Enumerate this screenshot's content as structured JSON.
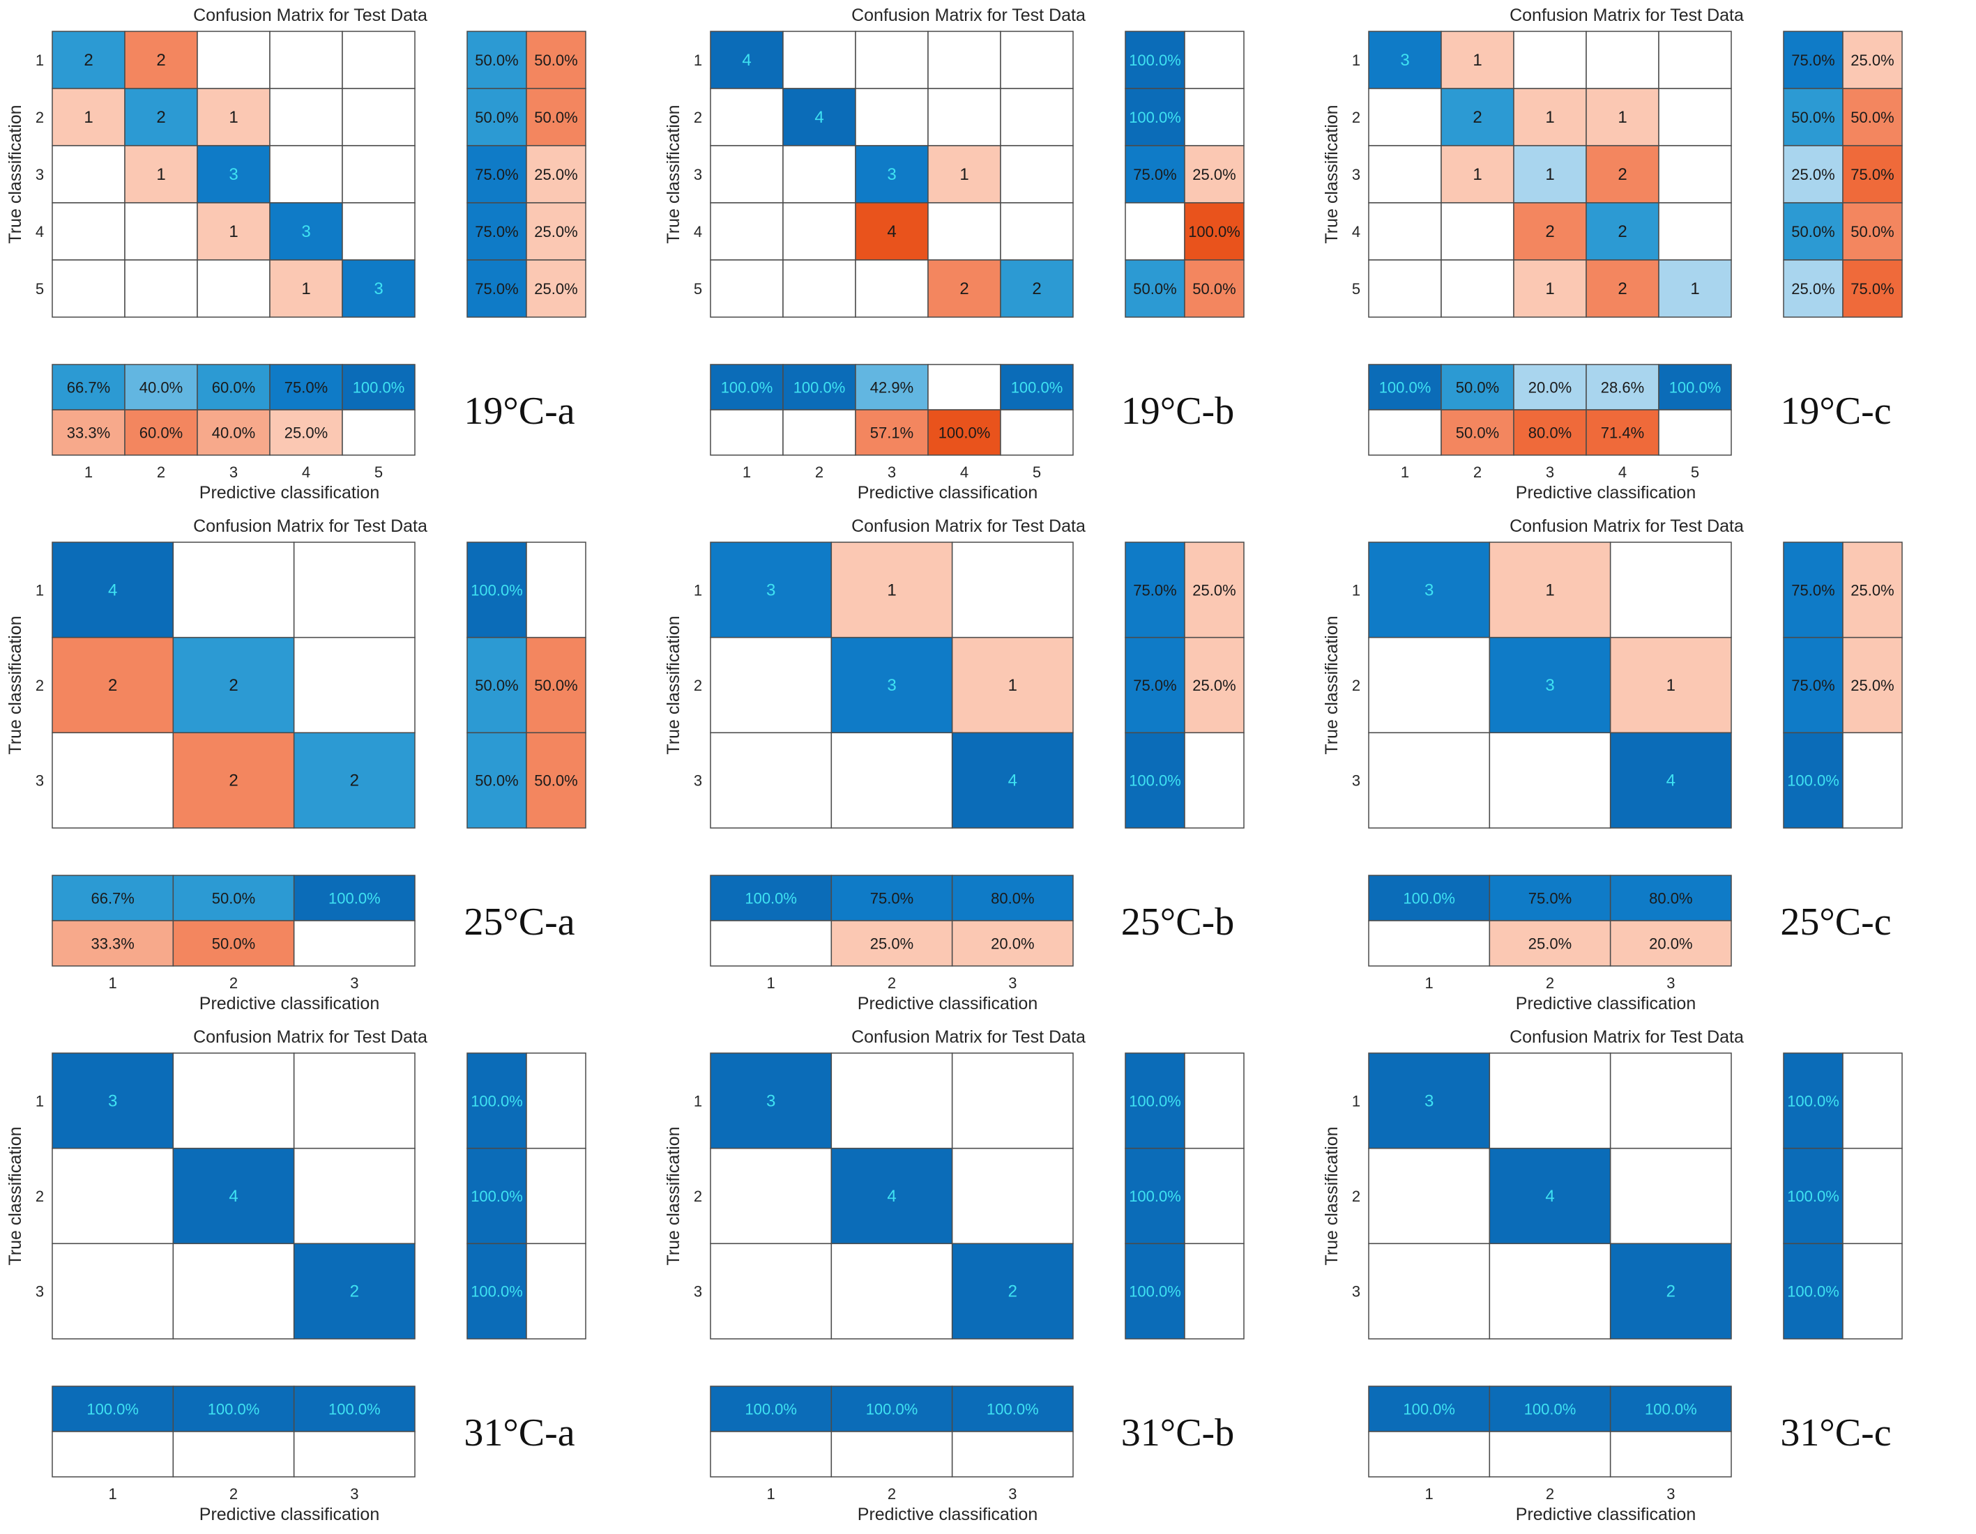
{
  "colors": {
    "blue_scale": [
      "#d3e9f6",
      "#a9d5ee",
      "#62b6e1",
      "#2c9ad3",
      "#0f7bc7",
      "#0b6cb8"
    ],
    "red_scale": [
      "#fde3d6",
      "#fbc8b3",
      "#f7a98b",
      "#f3865f",
      "#ef6a3a",
      "#e9531c"
    ],
    "grid": "#4a4a4a",
    "light_text": "#ffffff",
    "cyan_text": "#3fe2f2",
    "dark_text": "#1a1a1a"
  },
  "common": {
    "title": "Confusion Matrix for Test Data",
    "xlabel": "Predictive classification",
    "ylabel": "True classification"
  },
  "chart_data": [
    {
      "id": "19a",
      "label": "19°C-a",
      "type": "heatmap",
      "classes": [
        "1",
        "2",
        "3",
        "4",
        "5"
      ],
      "matrix": [
        [
          2,
          2,
          0,
          0,
          0
        ],
        [
          1,
          2,
          1,
          0,
          0
        ],
        [
          0,
          1,
          3,
          0,
          0
        ],
        [
          0,
          0,
          1,
          3,
          0
        ],
        [
          0,
          0,
          0,
          1,
          3
        ]
      ],
      "row_summary": [
        [
          "50.0%",
          "50.0%"
        ],
        [
          "50.0%",
          "50.0%"
        ],
        [
          "75.0%",
          "25.0%"
        ],
        [
          "75.0%",
          "25.0%"
        ],
        [
          "75.0%",
          "25.0%"
        ]
      ],
      "col_summary": [
        [
          "66.7%",
          "40.0%",
          "60.0%",
          "75.0%",
          "100.0%"
        ],
        [
          "33.3%",
          "60.0%",
          "40.0%",
          "25.0%",
          ""
        ]
      ]
    },
    {
      "id": "19b",
      "label": "19°C-b",
      "type": "heatmap",
      "classes": [
        "1",
        "2",
        "3",
        "4",
        "5"
      ],
      "matrix": [
        [
          4,
          0,
          0,
          0,
          0
        ],
        [
          0,
          4,
          0,
          0,
          0
        ],
        [
          0,
          0,
          3,
          1,
          0
        ],
        [
          0,
          0,
          4,
          0,
          0
        ],
        [
          0,
          0,
          0,
          2,
          2
        ]
      ],
      "row_summary": [
        [
          "100.0%",
          ""
        ],
        [
          "100.0%",
          ""
        ],
        [
          "75.0%",
          "25.0%"
        ],
        [
          "",
          "100.0%"
        ],
        [
          "50.0%",
          "50.0%"
        ]
      ],
      "col_summary": [
        [
          "100.0%",
          "100.0%",
          "42.9%",
          "",
          "100.0%"
        ],
        [
          "",
          "",
          "57.1%",
          "100.0%",
          ""
        ]
      ]
    },
    {
      "id": "19c",
      "label": "19°C-c",
      "type": "heatmap",
      "classes": [
        "1",
        "2",
        "3",
        "4",
        "5"
      ],
      "matrix": [
        [
          3,
          1,
          0,
          0,
          0
        ],
        [
          0,
          2,
          1,
          1,
          0
        ],
        [
          0,
          1,
          1,
          2,
          0
        ],
        [
          0,
          0,
          2,
          2,
          0
        ],
        [
          0,
          0,
          1,
          2,
          1
        ]
      ],
      "row_summary": [
        [
          "75.0%",
          "25.0%"
        ],
        [
          "50.0%",
          "50.0%"
        ],
        [
          "25.0%",
          "75.0%"
        ],
        [
          "50.0%",
          "50.0%"
        ],
        [
          "25.0%",
          "75.0%"
        ]
      ],
      "col_summary": [
        [
          "100.0%",
          "50.0%",
          "20.0%",
          "28.6%",
          "100.0%"
        ],
        [
          "",
          "50.0%",
          "80.0%",
          "71.4%",
          ""
        ]
      ]
    },
    {
      "id": "25a",
      "label": "25°C-a",
      "type": "heatmap",
      "classes": [
        "1",
        "2",
        "3"
      ],
      "matrix": [
        [
          4,
          0,
          0
        ],
        [
          2,
          2,
          0
        ],
        [
          0,
          2,
          2
        ]
      ],
      "row_summary": [
        [
          "100.0%",
          ""
        ],
        [
          "50.0%",
          "50.0%"
        ],
        [
          "50.0%",
          "50.0%"
        ]
      ],
      "col_summary": [
        [
          "66.7%",
          "50.0%",
          "100.0%"
        ],
        [
          "33.3%",
          "50.0%",
          ""
        ]
      ]
    },
    {
      "id": "25b",
      "label": "25°C-b",
      "type": "heatmap",
      "classes": [
        "1",
        "2",
        "3"
      ],
      "matrix": [
        [
          3,
          1,
          0
        ],
        [
          0,
          3,
          1
        ],
        [
          0,
          0,
          4
        ]
      ],
      "row_summary": [
        [
          "75.0%",
          "25.0%"
        ],
        [
          "75.0%",
          "25.0%"
        ],
        [
          "100.0%",
          ""
        ]
      ],
      "col_summary": [
        [
          "100.0%",
          "75.0%",
          "80.0%"
        ],
        [
          "",
          "25.0%",
          "20.0%"
        ]
      ]
    },
    {
      "id": "25c",
      "label": "25°C-c",
      "type": "heatmap",
      "classes": [
        "1",
        "2",
        "3"
      ],
      "matrix": [
        [
          3,
          1,
          0
        ],
        [
          0,
          3,
          1
        ],
        [
          0,
          0,
          4
        ]
      ],
      "row_summary": [
        [
          "75.0%",
          "25.0%"
        ],
        [
          "75.0%",
          "25.0%"
        ],
        [
          "100.0%",
          ""
        ]
      ],
      "col_summary": [
        [
          "100.0%",
          "75.0%",
          "80.0%"
        ],
        [
          "",
          "25.0%",
          "20.0%"
        ]
      ]
    },
    {
      "id": "31a",
      "label": "31°C-a",
      "type": "heatmap",
      "classes": [
        "1",
        "2",
        "3"
      ],
      "matrix": [
        [
          3,
          0,
          0
        ],
        [
          0,
          4,
          0
        ],
        [
          0,
          0,
          2
        ]
      ],
      "row_summary": [
        [
          "100.0%",
          ""
        ],
        [
          "100.0%",
          ""
        ],
        [
          "100.0%",
          ""
        ]
      ],
      "col_summary": [
        [
          "100.0%",
          "100.0%",
          "100.0%"
        ],
        [
          "",
          "",
          ""
        ]
      ]
    },
    {
      "id": "31b",
      "label": "31°C-b",
      "type": "heatmap",
      "classes": [
        "1",
        "2",
        "3"
      ],
      "matrix": [
        [
          3,
          0,
          0
        ],
        [
          0,
          4,
          0
        ],
        [
          0,
          0,
          2
        ]
      ],
      "row_summary": [
        [
          "100.0%",
          ""
        ],
        [
          "100.0%",
          ""
        ],
        [
          "100.0%",
          ""
        ]
      ],
      "col_summary": [
        [
          "100.0%",
          "100.0%",
          "100.0%"
        ],
        [
          "",
          "",
          ""
        ]
      ]
    },
    {
      "id": "31c",
      "label": "31°C-c",
      "type": "heatmap",
      "classes": [
        "1",
        "2",
        "3"
      ],
      "matrix": [
        [
          3,
          0,
          0
        ],
        [
          0,
          4,
          0
        ],
        [
          0,
          0,
          2
        ]
      ],
      "row_summary": [
        [
          "100.0%",
          ""
        ],
        [
          "100.0%",
          ""
        ],
        [
          "100.0%",
          ""
        ]
      ],
      "col_summary": [
        [
          "100.0%",
          "100.0%",
          "100.0%"
        ],
        [
          "",
          "",
          ""
        ]
      ]
    }
  ]
}
